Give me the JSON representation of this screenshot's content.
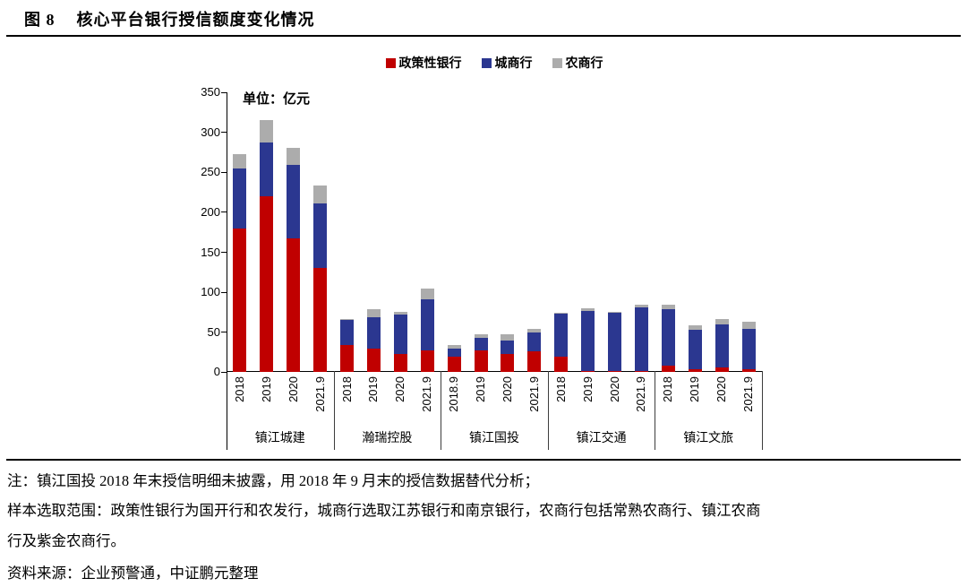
{
  "page": {
    "figure_label": "图 8",
    "title": "核心平台银行授信额度变化情况"
  },
  "chart_data": {
    "type": "bar",
    "stacked": true,
    "unit_label": "单位：亿元",
    "ylim": [
      0,
      350
    ],
    "yticks": [
      0,
      50,
      100,
      150,
      200,
      250,
      300,
      350
    ],
    "legend_position": "top",
    "grid": false,
    "legend": [
      {
        "name": "政策性银行",
        "color": "#C00000"
      },
      {
        "name": "城商行",
        "color": "#2B3790"
      },
      {
        "name": "农商行",
        "color": "#ACACAC"
      }
    ],
    "groups": [
      {
        "label": "镇江城建",
        "bars": [
          {
            "category": "2018",
            "values": [
              180,
              75,
              18
            ]
          },
          {
            "category": "2019",
            "values": [
              220,
              67,
              28
            ]
          },
          {
            "category": "2020",
            "values": [
              167,
              92,
              21
            ]
          },
          {
            "category": "2021.9",
            "values": [
              130,
              81,
              22
            ]
          }
        ]
      },
      {
        "label": "瀚瑞控股",
        "bars": [
          {
            "category": "2018",
            "values": [
              34,
              31,
              2
            ]
          },
          {
            "category": "2019",
            "values": [
              30,
              39,
              10
            ]
          },
          {
            "category": "2020",
            "values": [
              23,
              49,
              3
            ]
          },
          {
            "category": "2021.9",
            "values": [
              27,
              64,
              14
            ]
          }
        ]
      },
      {
        "label": "镇江国投",
        "bars": [
          {
            "category": "2018.9",
            "values": [
              19,
              11,
              4
            ]
          },
          {
            "category": "2019",
            "values": [
              27,
              16,
              5
            ]
          },
          {
            "category": "2020",
            "values": [
              23,
              17,
              8
            ]
          },
          {
            "category": "2021.9",
            "values": [
              26,
              24,
              4
            ]
          }
        ]
      },
      {
        "label": "镇江交通",
        "bars": [
          {
            "category": "2018",
            "values": [
              19,
              54,
              1
            ]
          },
          {
            "category": "2019",
            "values": [
              2,
              75,
              3
            ]
          },
          {
            "category": "2020",
            "values": [
              2,
              72,
              2
            ]
          },
          {
            "category": "2021.9",
            "values": [
              2,
              79,
              3
            ]
          }
        ]
      },
      {
        "label": "镇江文旅",
        "bars": [
          {
            "category": "2018",
            "values": [
              8,
              71,
              6
            ]
          },
          {
            "category": "2019",
            "values": [
              4,
              49,
              6
            ]
          },
          {
            "category": "2020",
            "values": [
              6,
              54,
              7
            ]
          },
          {
            "category": "2021.9",
            "values": [
              4,
              50,
              9
            ]
          }
        ]
      }
    ]
  },
  "notes": {
    "line1": "注：镇江国投 2018 年末授信明细未披露，用 2018 年 9 月末的授信数据替代分析；",
    "line2": "样本选取范围：政策性银行为国开行和农发行，城商行选取江苏银行和南京银行，农商行包括常熟农商行、镇江农商",
    "line3": "行及紫金农商行。",
    "source": "资料来源：企业预警通，中证鹏元整理"
  }
}
